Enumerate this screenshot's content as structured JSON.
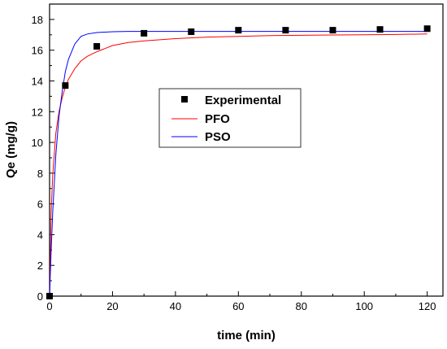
{
  "chart_data": {
    "type": "line",
    "xlabel": "time (min)",
    "ylabel": "Qe (mg/g)",
    "xlim": [
      0,
      125
    ],
    "ylim": [
      0,
      19
    ],
    "x_ticks": [
      0,
      20,
      40,
      60,
      80,
      100,
      120
    ],
    "y_ticks": [
      0,
      2,
      4,
      6,
      8,
      10,
      12,
      14,
      16,
      18
    ],
    "grid": false,
    "legend_position": "center",
    "series": [
      {
        "name": "Experimental",
        "kind": "scatter",
        "color": "#000000",
        "x": [
          0,
          5,
          15,
          30,
          45,
          60,
          75,
          90,
          105,
          120
        ],
        "y": [
          0,
          13.7,
          16.25,
          17.1,
          17.2,
          17.3,
          17.3,
          17.3,
          17.35,
          17.4
        ]
      },
      {
        "name": "PFO",
        "kind": "line",
        "color": "#ff0000",
        "x": [
          0,
          0.5,
          1,
          2,
          3,
          4,
          5,
          6,
          8,
          10,
          12,
          15,
          20,
          25,
          30,
          40,
          50,
          60,
          70,
          80,
          90,
          100,
          110,
          120
        ],
        "y": [
          0,
          5.4,
          7.9,
          10.6,
          12.0,
          12.9,
          13.6,
          14.1,
          14.8,
          15.3,
          15.6,
          15.9,
          16.3,
          16.5,
          16.6,
          16.75,
          16.85,
          16.9,
          16.95,
          16.97,
          16.99,
          17.0,
          17.02,
          17.05
        ]
      },
      {
        "name": "PSO",
        "kind": "line",
        "color": "#0000ff",
        "x": [
          0,
          0.5,
          1,
          2,
          3,
          4,
          5,
          6,
          8,
          10,
          12,
          15,
          20,
          25,
          30,
          40,
          50,
          60,
          70,
          80,
          90,
          100,
          110,
          120
        ],
        "y": [
          0,
          2.9,
          5.5,
          9.2,
          11.7,
          13.3,
          14.6,
          15.4,
          16.4,
          16.9,
          17.05,
          17.15,
          17.2,
          17.22,
          17.22,
          17.22,
          17.22,
          17.22,
          17.22,
          17.22,
          17.22,
          17.22,
          17.22,
          17.22
        ]
      }
    ]
  }
}
